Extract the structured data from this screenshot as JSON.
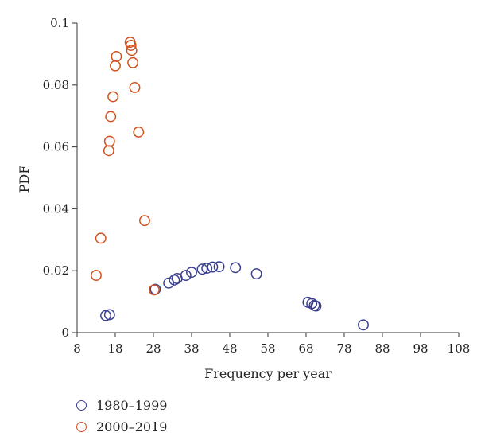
{
  "chart_data": {
    "type": "scatter",
    "xlabel": "Frequency per year",
    "ylabel": "PDF",
    "xlim": [
      8,
      108
    ],
    "ylim": [
      0,
      0.1
    ],
    "xticks": [
      8,
      18,
      28,
      38,
      48,
      58,
      68,
      78,
      88,
      98,
      108
    ],
    "yticks": [
      0,
      0.02,
      0.04,
      0.06,
      0.08,
      0.1
    ],
    "xtick_labels": [
      "8",
      "18",
      "28",
      "38",
      "48",
      "58",
      "68",
      "78",
      "88",
      "98",
      "108"
    ],
    "ytick_labels": [
      "0",
      "0.02",
      "0.04",
      "0.06",
      "0.08",
      "0.1"
    ],
    "grid": false,
    "legend_position": "below-left",
    "series": [
      {
        "name": "1980–1999",
        "color": "#3b3f8f",
        "points": [
          [
            15.5,
            0.0055
          ],
          [
            16.5,
            0.0058
          ],
          [
            28.5,
            0.014
          ],
          [
            32,
            0.016
          ],
          [
            33.5,
            0.017
          ],
          [
            34.2,
            0.0175
          ],
          [
            36.5,
            0.0185
          ],
          [
            38,
            0.0195
          ],
          [
            40.8,
            0.0205
          ],
          [
            42,
            0.0208
          ],
          [
            43.5,
            0.0212
          ],
          [
            45.2,
            0.0213
          ],
          [
            49.5,
            0.021
          ],
          [
            55,
            0.019
          ],
          [
            68.5,
            0.0098
          ],
          [
            69.5,
            0.0094
          ],
          [
            70.2,
            0.0088
          ],
          [
            70.6,
            0.0086
          ],
          [
            83,
            0.0025
          ]
        ]
      },
      {
        "name": "2000–2019",
        "color": "#d2501e",
        "points": [
          [
            13,
            0.0185
          ],
          [
            14.2,
            0.0305
          ],
          [
            16.3,
            0.0588
          ],
          [
            16.5,
            0.0618
          ],
          [
            16.8,
            0.0698
          ],
          [
            17.4,
            0.0762
          ],
          [
            18,
            0.0862
          ],
          [
            18.3,
            0.0892
          ],
          [
            21.9,
            0.0938
          ],
          [
            22.1,
            0.0928
          ],
          [
            22.3,
            0.0912
          ],
          [
            22.6,
            0.0872
          ],
          [
            23.1,
            0.0792
          ],
          [
            24.1,
            0.0648
          ],
          [
            25.7,
            0.0362
          ],
          [
            28.2,
            0.0138
          ]
        ]
      }
    ]
  }
}
